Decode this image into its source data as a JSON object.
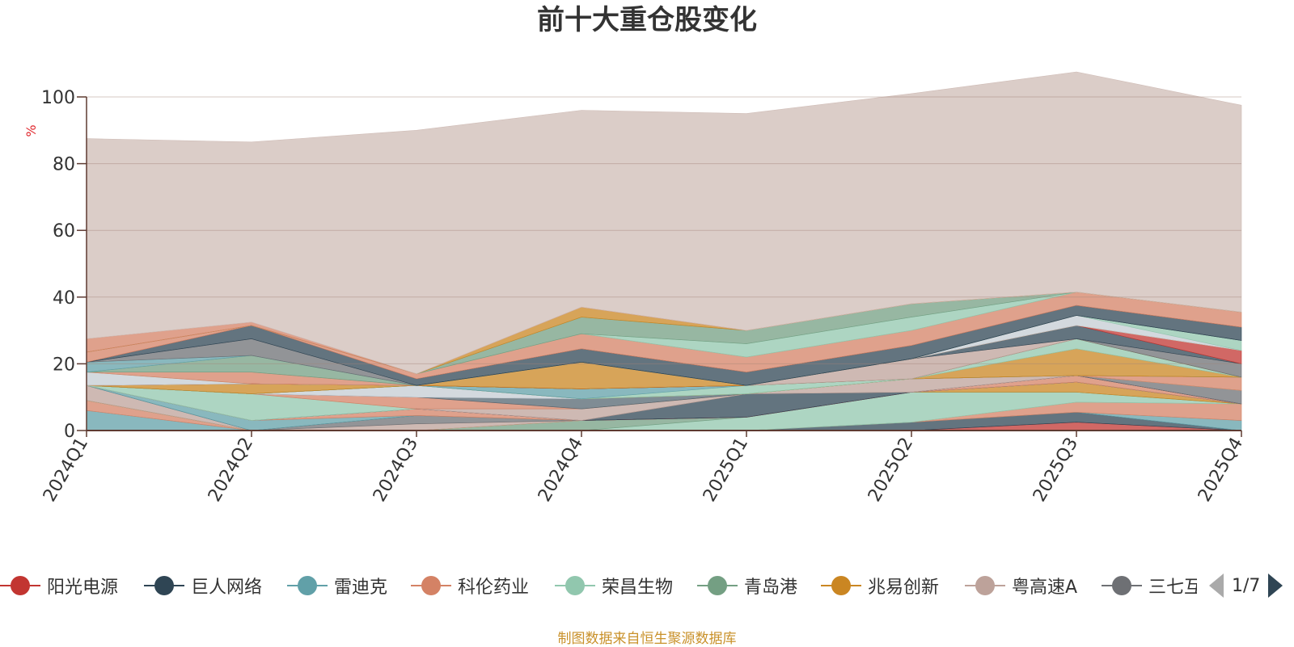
{
  "title": "前十大重仓股变化",
  "source_note": "制图数据来自恒生聚源数据库",
  "legend": {
    "page_info": "1/7",
    "items": [
      {
        "label": "阳光电源",
        "color": "#c23531"
      },
      {
        "label": "巨人网络",
        "color": "#2f4554"
      },
      {
        "label": "雷迪克",
        "color": "#61a0a8"
      },
      {
        "label": "科伦药业",
        "color": "#d48265"
      },
      {
        "label": "荣昌生物",
        "color": "#91c7ae"
      },
      {
        "label": "青岛港",
        "color": "#749f83"
      },
      {
        "label": "兆易创新",
        "color": "#ca8622"
      },
      {
        "label": "粤高速A",
        "color": "#bda29a"
      },
      {
        "label": "三七互娱",
        "color": "#6e7074"
      }
    ]
  },
  "chart_data": {
    "type": "area",
    "stacked": true,
    "title": "前十大重仓股变化",
    "ylabel": "%",
    "ylim": [
      0,
      100
    ],
    "yticks": [
      0,
      20,
      40,
      60,
      80,
      100
    ],
    "categories": [
      "2024Q1",
      "2024Q2",
      "2024Q3",
      "2024Q4",
      "2025Q1",
      "2025Q2",
      "2025Q3",
      "2025Q4"
    ],
    "grid": true,
    "legend_position": "bottom",
    "series": [
      {
        "name": "阳光电源",
        "color": "#c23531",
        "values": [
          0,
          0,
          0,
          0,
          0,
          0,
          2.5,
          0
        ]
      },
      {
        "name": "巨人网络",
        "color": "#2f4554",
        "values": [
          0,
          0,
          0,
          0,
          0,
          2.5,
          3,
          0
        ]
      },
      {
        "name": "雷迪克",
        "color": "#61a0a8",
        "values": [
          6,
          0,
          0,
          0,
          0,
          0,
          0,
          3
        ]
      },
      {
        "name": "科伦药业",
        "color": "#d48265",
        "values": [
          3,
          0,
          0,
          0,
          0,
          0,
          3,
          5
        ]
      },
      {
        "name": "荣昌生物",
        "color": "#91c7ae",
        "values": [
          0,
          0,
          0,
          0,
          4,
          9,
          3,
          0
        ]
      },
      {
        "name": "青岛港",
        "color": "#749f83",
        "values": [
          0,
          0,
          0,
          3,
          0,
          0,
          0,
          0
        ]
      },
      {
        "name": "兆易创新",
        "color": "#ca8622",
        "values": [
          0,
          0,
          0,
          0,
          0,
          0,
          3,
          0
        ]
      },
      {
        "name": "粤高速A",
        "color": "#bda29a",
        "values": [
          4.5,
          0,
          2,
          0,
          0,
          0,
          0,
          0
        ]
      },
      {
        "name": "三七互娱",
        "color": "#6e7074",
        "values": [
          0,
          0,
          2.5,
          0,
          0,
          0,
          0,
          0
        ]
      },
      {
        "name": "",
        "color": "#546570",
        "values": [
          0,
          0,
          0,
          0,
          0,
          0,
          0,
          0
        ]
      },
      {
        "name": "",
        "color": "#61a0a8",
        "values": [
          0,
          3,
          0,
          0,
          0,
          0,
          0,
          0
        ]
      },
      {
        "name": "",
        "color": "#d48265",
        "values": [
          0,
          0,
          2,
          0,
          0,
          0,
          2,
          0
        ]
      },
      {
        "name": "",
        "color": "#c4ccd3",
        "values": [
          0,
          0,
          0,
          0,
          0,
          0,
          0,
          0
        ]
      },
      {
        "name": "",
        "color": "#c23531",
        "values": [
          0,
          0,
          0,
          0,
          0,
          0,
          0,
          0
        ]
      },
      {
        "name": "",
        "color": "#2f4554",
        "values": [
          0,
          0,
          0,
          0,
          7,
          0,
          0,
          0
        ]
      },
      {
        "name": "",
        "color": "#6e7074",
        "values": [
          0,
          0,
          0,
          0,
          0,
          0,
          0,
          4
        ]
      },
      {
        "name": "",
        "color": "#bda29a",
        "values": [
          0,
          0,
          0,
          3.5,
          0,
          4,
          0,
          0
        ]
      },
      {
        "name": "",
        "color": "#91c7ae",
        "values": [
          0,
          8,
          0,
          0,
          0,
          0,
          0,
          0
        ]
      },
      {
        "name": "",
        "color": "#d48265",
        "values": [
          0,
          0,
          3.5,
          0,
          0,
          0,
          0,
          4
        ]
      },
      {
        "name": "",
        "color": "#546570",
        "values": [
          0,
          0,
          0,
          3,
          0,
          0,
          0,
          0
        ]
      },
      {
        "name": "",
        "color": "#c4ccd3",
        "values": [
          0,
          0,
          3.5,
          0,
          0,
          0,
          0,
          0
        ]
      },
      {
        "name": "",
        "color": "#749f83",
        "values": [
          0,
          0,
          0,
          0,
          0,
          0,
          0,
          0
        ]
      },
      {
        "name": "",
        "color": "#ca8622",
        "values": [
          0,
          0,
          0,
          0,
          0,
          0,
          8,
          0
        ]
      },
      {
        "name": "",
        "color": "#91c7ae",
        "values": [
          0,
          0,
          0,
          0,
          2.5,
          0,
          3,
          0
        ]
      },
      {
        "name": "",
        "color": "#61a0a8",
        "values": [
          0,
          0,
          0,
          3,
          0,
          0,
          0,
          0
        ]
      },
      {
        "name": "",
        "color": "#ca8622",
        "values": [
          0,
          3,
          0,
          0,
          0,
          0,
          0,
          0
        ]
      },
      {
        "name": "",
        "color": "#6e7074",
        "values": [
          0,
          0,
          0,
          0,
          0,
          0,
          0,
          4
        ]
      },
      {
        "name": "",
        "color": "#bda29a",
        "values": [
          0,
          0,
          0,
          0,
          0,
          6,
          0,
          0
        ]
      },
      {
        "name": "",
        "color": "#2f4554",
        "values": [
          0,
          0,
          0,
          0,
          0,
          0,
          4,
          0
        ]
      },
      {
        "name": "",
        "color": "#c23531",
        "values": [
          0,
          0,
          0,
          0,
          0,
          0,
          0,
          4
        ]
      },
      {
        "name": "",
        "color": "#ca8622",
        "values": [
          0,
          0,
          0,
          8,
          0,
          0,
          0,
          0
        ]
      },
      {
        "name": "",
        "color": "#c4ccd3",
        "values": [
          4,
          0,
          0,
          0,
          0,
          0,
          3,
          0
        ]
      },
      {
        "name": "",
        "color": "#91c7ae",
        "values": [
          0,
          0,
          0,
          0,
          0,
          0,
          0,
          3
        ]
      },
      {
        "name": "",
        "color": "#d48265",
        "values": [
          0,
          3.5,
          0,
          0,
          0,
          0,
          0,
          0
        ]
      },
      {
        "name": "",
        "color": "#749f83",
        "values": [
          0,
          5,
          0,
          0,
          0,
          0,
          0,
          0
        ]
      },
      {
        "name": "",
        "color": "#61a0a8",
        "values": [
          3,
          0,
          0,
          0,
          0,
          0,
          0,
          0
        ]
      },
      {
        "name": "",
        "color": "#6e7074",
        "values": [
          0,
          5,
          0,
          0,
          0,
          0,
          0,
          0
        ]
      },
      {
        "name": "",
        "color": "#2f4554",
        "values": [
          0,
          4,
          2,
          4,
          4,
          4,
          3,
          4
        ]
      },
      {
        "name": "",
        "color": "#d48265",
        "values": [
          3,
          0,
          1.5,
          4.5,
          4.5,
          4.5,
          4,
          4.5
        ]
      },
      {
        "name": "",
        "color": "#91c7ae",
        "values": [
          0,
          0,
          0,
          0,
          4,
          4,
          0,
          0
        ]
      },
      {
        "name": "",
        "color": "#749f83",
        "values": [
          0,
          0,
          0,
          5,
          4,
          4,
          0,
          0
        ]
      },
      {
        "name": "",
        "color": "#ca8622",
        "values": [
          0,
          0,
          0,
          3,
          0,
          0,
          0,
          0
        ]
      },
      {
        "name": "",
        "color": "#d48265",
        "values": [
          4,
          1,
          0,
          0,
          0,
          0,
          0,
          0
        ]
      },
      {
        "name": "",
        "color": "#cfbcb6",
        "values": [
          60,
          54,
          73,
          59,
          65,
          63,
          66,
          62
        ]
      }
    ]
  }
}
